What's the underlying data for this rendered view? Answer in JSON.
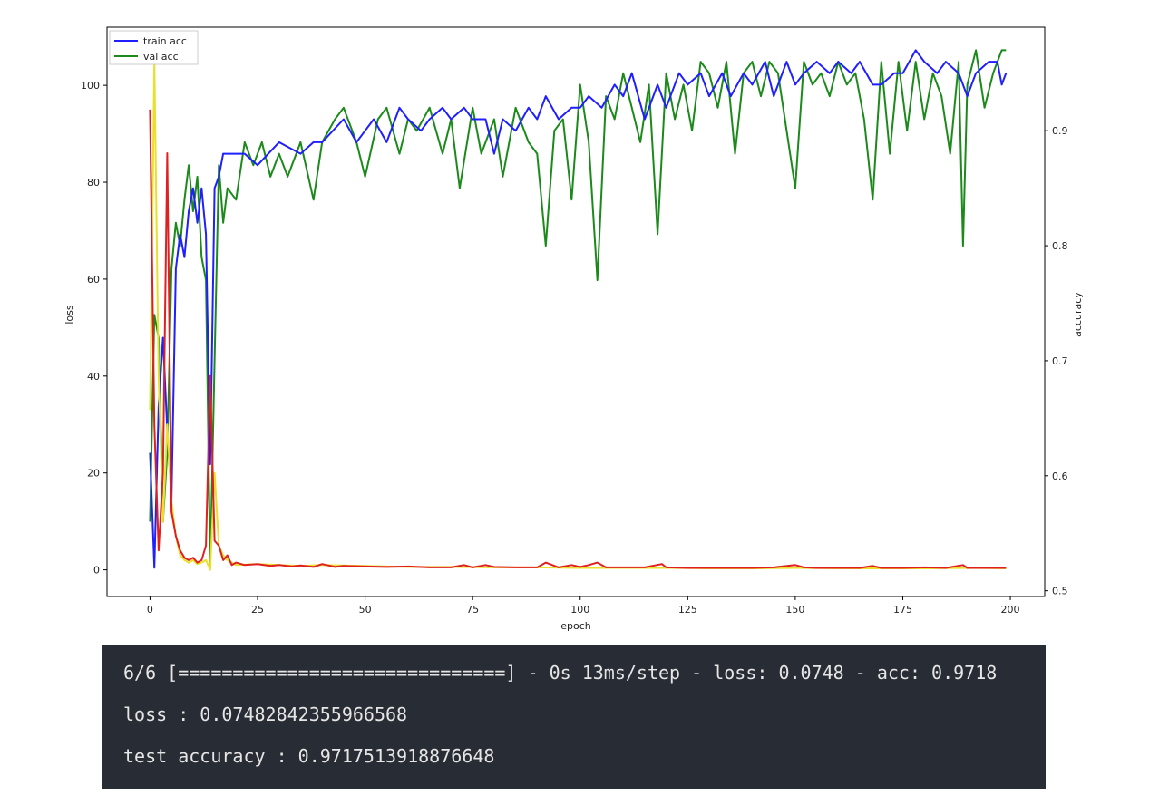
{
  "chart_data": {
    "type": "line",
    "xlabel": "epoch",
    "ylabel_left": "loss",
    "ylabel_right": "accuracy",
    "xlim": [
      -10,
      208
    ],
    "ylim_left": [
      -5.5,
      112
    ],
    "ylim_right": [
      0.495,
      0.99
    ],
    "x_ticks": [
      0,
      25,
      50,
      75,
      100,
      125,
      150,
      175,
      200
    ],
    "y_ticks_left": [
      0,
      20,
      40,
      60,
      80,
      100
    ],
    "y_ticks_right": [
      0.5,
      0.6,
      0.7,
      0.8,
      0.9
    ],
    "grid": false,
    "legend": {
      "position": "top-left",
      "entries": [
        "train acc",
        "val acc"
      ]
    },
    "series": [
      {
        "name": "train acc",
        "axis": "right",
        "color": "#1f1fff",
        "points": [
          [
            0,
            0.62
          ],
          [
            1,
            0.52
          ],
          [
            2,
            0.66
          ],
          [
            3,
            0.72
          ],
          [
            4,
            0.64
          ],
          [
            5,
            0.58
          ],
          [
            6,
            0.78
          ],
          [
            7,
            0.81
          ],
          [
            8,
            0.79
          ],
          [
            9,
            0.83
          ],
          [
            10,
            0.85
          ],
          [
            11,
            0.82
          ],
          [
            12,
            0.85
          ],
          [
            13,
            0.81
          ],
          [
            14,
            0.61
          ],
          [
            15,
            0.85
          ],
          [
            16,
            0.86
          ],
          [
            17,
            0.88
          ],
          [
            18,
            0.88
          ],
          [
            20,
            0.88
          ],
          [
            22,
            0.88
          ],
          [
            25,
            0.87
          ],
          [
            30,
            0.89
          ],
          [
            35,
            0.88
          ],
          [
            38,
            0.89
          ],
          [
            40,
            0.89
          ],
          [
            45,
            0.91
          ],
          [
            48,
            0.89
          ],
          [
            50,
            0.9
          ],
          [
            52,
            0.91
          ],
          [
            55,
            0.89
          ],
          [
            58,
            0.92
          ],
          [
            60,
            0.91
          ],
          [
            63,
            0.9
          ],
          [
            65,
            0.91
          ],
          [
            68,
            0.92
          ],
          [
            70,
            0.91
          ],
          [
            73,
            0.92
          ],
          [
            75,
            0.91
          ],
          [
            78,
            0.91
          ],
          [
            80,
            0.88
          ],
          [
            82,
            0.91
          ],
          [
            85,
            0.9
          ],
          [
            88,
            0.92
          ],
          [
            90,
            0.91
          ],
          [
            92,
            0.93
          ],
          [
            95,
            0.91
          ],
          [
            98,
            0.92
          ],
          [
            100,
            0.92
          ],
          [
            102,
            0.93
          ],
          [
            105,
            0.92
          ],
          [
            108,
            0.94
          ],
          [
            110,
            0.93
          ],
          [
            112,
            0.95
          ],
          [
            115,
            0.91
          ],
          [
            118,
            0.94
          ],
          [
            120,
            0.92
          ],
          [
            123,
            0.95
          ],
          [
            125,
            0.94
          ],
          [
            128,
            0.95
          ],
          [
            130,
            0.93
          ],
          [
            133,
            0.95
          ],
          [
            135,
            0.93
          ],
          [
            138,
            0.95
          ],
          [
            140,
            0.94
          ],
          [
            143,
            0.96
          ],
          [
            145,
            0.93
          ],
          [
            148,
            0.96
          ],
          [
            150,
            0.94
          ],
          [
            152,
            0.95
          ],
          [
            155,
            0.96
          ],
          [
            158,
            0.95
          ],
          [
            160,
            0.96
          ],
          [
            163,
            0.95
          ],
          [
            165,
            0.96
          ],
          [
            168,
            0.94
          ],
          [
            170,
            0.94
          ],
          [
            173,
            0.95
          ],
          [
            175,
            0.95
          ],
          [
            178,
            0.97
          ],
          [
            180,
            0.96
          ],
          [
            183,
            0.95
          ],
          [
            185,
            0.96
          ],
          [
            188,
            0.95
          ],
          [
            190,
            0.93
          ],
          [
            192,
            0.95
          ],
          [
            195,
            0.96
          ],
          [
            197,
            0.96
          ],
          [
            198,
            0.94
          ],
          [
            199,
            0.95
          ]
        ]
      },
      {
        "name": "val acc",
        "axis": "right",
        "color": "#1b8a1b",
        "points": [
          [
            0,
            0.56
          ],
          [
            1,
            0.74
          ],
          [
            2,
            0.72
          ],
          [
            3,
            0.56
          ],
          [
            4,
            0.62
          ],
          [
            5,
            0.78
          ],
          [
            6,
            0.82
          ],
          [
            7,
            0.8
          ],
          [
            8,
            0.84
          ],
          [
            9,
            0.87
          ],
          [
            10,
            0.83
          ],
          [
            11,
            0.86
          ],
          [
            12,
            0.79
          ],
          [
            13,
            0.77
          ],
          [
            14,
            0.52
          ],
          [
            15,
            0.7
          ],
          [
            16,
            0.87
          ],
          [
            17,
            0.82
          ],
          [
            18,
            0.85
          ],
          [
            20,
            0.84
          ],
          [
            22,
            0.89
          ],
          [
            24,
            0.87
          ],
          [
            26,
            0.89
          ],
          [
            28,
            0.86
          ],
          [
            30,
            0.88
          ],
          [
            32,
            0.86
          ],
          [
            35,
            0.89
          ],
          [
            38,
            0.84
          ],
          [
            40,
            0.89
          ],
          [
            43,
            0.91
          ],
          [
            45,
            0.92
          ],
          [
            48,
            0.89
          ],
          [
            50,
            0.86
          ],
          [
            53,
            0.91
          ],
          [
            55,
            0.92
          ],
          [
            58,
            0.88
          ],
          [
            60,
            0.91
          ],
          [
            62,
            0.9
          ],
          [
            65,
            0.92
          ],
          [
            68,
            0.88
          ],
          [
            70,
            0.91
          ],
          [
            72,
            0.85
          ],
          [
            75,
            0.92
          ],
          [
            77,
            0.88
          ],
          [
            80,
            0.91
          ],
          [
            82,
            0.86
          ],
          [
            85,
            0.92
          ],
          [
            88,
            0.89
          ],
          [
            90,
            0.88
          ],
          [
            92,
            0.8
          ],
          [
            94,
            0.9
          ],
          [
            96,
            0.91
          ],
          [
            98,
            0.84
          ],
          [
            100,
            0.94
          ],
          [
            102,
            0.89
          ],
          [
            104,
            0.77
          ],
          [
            106,
            0.93
          ],
          [
            108,
            0.91
          ],
          [
            110,
            0.95
          ],
          [
            112,
            0.92
          ],
          [
            114,
            0.89
          ],
          [
            116,
            0.94
          ],
          [
            118,
            0.81
          ],
          [
            120,
            0.95
          ],
          [
            122,
            0.91
          ],
          [
            124,
            0.94
          ],
          [
            126,
            0.9
          ],
          [
            128,
            0.96
          ],
          [
            130,
            0.95
          ],
          [
            132,
            0.92
          ],
          [
            134,
            0.96
          ],
          [
            136,
            0.88
          ],
          [
            138,
            0.95
          ],
          [
            140,
            0.96
          ],
          [
            142,
            0.93
          ],
          [
            144,
            0.96
          ],
          [
            146,
            0.95
          ],
          [
            148,
            0.9
          ],
          [
            150,
            0.85
          ],
          [
            152,
            0.96
          ],
          [
            154,
            0.94
          ],
          [
            156,
            0.95
          ],
          [
            158,
            0.93
          ],
          [
            160,
            0.96
          ],
          [
            162,
            0.94
          ],
          [
            164,
            0.95
          ],
          [
            166,
            0.91
          ],
          [
            168,
            0.84
          ],
          [
            170,
            0.96
          ],
          [
            172,
            0.88
          ],
          [
            174,
            0.96
          ],
          [
            176,
            0.9
          ],
          [
            178,
            0.96
          ],
          [
            180,
            0.91
          ],
          [
            182,
            0.95
          ],
          [
            184,
            0.93
          ],
          [
            186,
            0.88
          ],
          [
            188,
            0.96
          ],
          [
            189,
            0.8
          ],
          [
            190,
            0.94
          ],
          [
            192,
            0.97
          ],
          [
            194,
            0.92
          ],
          [
            196,
            0.95
          ],
          [
            198,
            0.97
          ],
          [
            199,
            0.97
          ]
        ]
      },
      {
        "name": "",
        "axis": "left",
        "color": "#e8e02a",
        "points": [
          [
            0,
            33
          ],
          [
            1,
            105
          ],
          [
            2,
            40
          ],
          [
            3,
            10
          ],
          [
            4,
            30
          ],
          [
            5,
            14
          ],
          [
            6,
            7
          ],
          [
            7,
            3
          ],
          [
            8,
            2
          ],
          [
            9,
            1.5
          ],
          [
            10,
            2
          ],
          [
            11,
            1.2
          ],
          [
            12,
            1.5
          ],
          [
            13,
            2
          ],
          [
            14,
            0
          ],
          [
            15,
            20
          ],
          [
            16,
            5
          ],
          [
            17,
            3
          ],
          [
            18,
            2
          ],
          [
            20,
            1
          ],
          [
            25,
            1.2
          ],
          [
            30,
            1
          ],
          [
            35,
            0.8
          ],
          [
            40,
            1
          ],
          [
            50,
            0.8
          ],
          [
            60,
            0.6
          ],
          [
            70,
            0.6
          ],
          [
            80,
            0.5
          ],
          [
            90,
            0.5
          ],
          [
            100,
            0.4
          ],
          [
            110,
            0.4
          ],
          [
            120,
            0.4
          ],
          [
            130,
            0.3
          ],
          [
            140,
            0.3
          ],
          [
            150,
            0.4
          ],
          [
            160,
            0.3
          ],
          [
            170,
            0.3
          ],
          [
            180,
            0.3
          ],
          [
            190,
            0.4
          ],
          [
            199,
            0.3
          ]
        ]
      },
      {
        "name": "",
        "axis": "left",
        "color": "#e02020",
        "points": [
          [
            0,
            95
          ],
          [
            1,
            30
          ],
          [
            2,
            4
          ],
          [
            3,
            20
          ],
          [
            4,
            86
          ],
          [
            5,
            12
          ],
          [
            6,
            7
          ],
          [
            7,
            4
          ],
          [
            8,
            2.5
          ],
          [
            9,
            2
          ],
          [
            10,
            2.5
          ],
          [
            11,
            1.5
          ],
          [
            12,
            2
          ],
          [
            13,
            5
          ],
          [
            14,
            40
          ],
          [
            15,
            6
          ],
          [
            16,
            5
          ],
          [
            17,
            2
          ],
          [
            18,
            3
          ],
          [
            19,
            1
          ],
          [
            20,
            1.5
          ],
          [
            22,
            1
          ],
          [
            25,
            1.2
          ],
          [
            28,
            0.8
          ],
          [
            30,
            1
          ],
          [
            33,
            0.7
          ],
          [
            35,
            0.9
          ],
          [
            38,
            0.6
          ],
          [
            40,
            1.2
          ],
          [
            43,
            0.6
          ],
          [
            45,
            0.8
          ],
          [
            50,
            0.7
          ],
          [
            55,
            0.6
          ],
          [
            60,
            0.7
          ],
          [
            65,
            0.5
          ],
          [
            70,
            0.5
          ],
          [
            73,
            1
          ],
          [
            75,
            0.5
          ],
          [
            78,
            1
          ],
          [
            80,
            0.6
          ],
          [
            85,
            0.5
          ],
          [
            90,
            0.5
          ],
          [
            92,
            1.5
          ],
          [
            95,
            0.5
          ],
          [
            98,
            1
          ],
          [
            100,
            0.6
          ],
          [
            102,
            1
          ],
          [
            104,
            1.5
          ],
          [
            106,
            0.5
          ],
          [
            110,
            0.5
          ],
          [
            115,
            0.5
          ],
          [
            119,
            1.2
          ],
          [
            120,
            0.5
          ],
          [
            125,
            0.4
          ],
          [
            130,
            0.4
          ],
          [
            135,
            0.4
          ],
          [
            140,
            0.4
          ],
          [
            145,
            0.5
          ],
          [
            150,
            1
          ],
          [
            152,
            0.5
          ],
          [
            155,
            0.4
          ],
          [
            160,
            0.4
          ],
          [
            165,
            0.4
          ],
          [
            168,
            0.8
          ],
          [
            170,
            0.4
          ],
          [
            175,
            0.4
          ],
          [
            180,
            0.5
          ],
          [
            185,
            0.4
          ],
          [
            189,
            1
          ],
          [
            190,
            0.4
          ],
          [
            195,
            0.4
          ],
          [
            199,
            0.4
          ]
        ]
      }
    ]
  },
  "console": {
    "lines": [
      "6/6 [==============================] - 0s 13ms/step - loss: 0.0748 - acc: 0.9718",
      "loss : 0.07482842355966568",
      "test accuracy : 0.9717513918876648"
    ]
  }
}
